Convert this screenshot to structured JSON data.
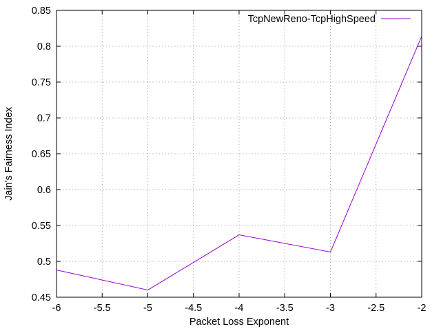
{
  "chart_data": {
    "type": "line",
    "title": "",
    "xlabel": "Packet Loss Exponent",
    "ylabel": "Jain's Fairness Index",
    "xlim": [
      -6,
      -2
    ],
    "ylim": [
      0.45,
      0.85
    ],
    "x_ticks": [
      -6,
      -5.5,
      -5,
      -4.5,
      -4,
      -3.5,
      -3,
      -2.5,
      -2
    ],
    "x_tick_labels": [
      "-6",
      "-5.5",
      "-5",
      "-4.5",
      "-4",
      "-3.5",
      "-3",
      "-2.5",
      "-2"
    ],
    "y_ticks": [
      0.45,
      0.5,
      0.55,
      0.6,
      0.65,
      0.7,
      0.75,
      0.8,
      0.85
    ],
    "y_tick_labels": [
      "0.45",
      "0.5",
      "0.55",
      "0.6",
      "0.65",
      "0.7",
      "0.75",
      "0.8",
      "0.85"
    ],
    "grid": true,
    "legend_position": "top-right",
    "series": [
      {
        "name": "TcpNewReno-TcpHighSpeed",
        "color": "#9400d3",
        "x": [
          -6,
          -5,
          -4,
          -3,
          -2
        ],
        "y": [
          0.488,
          0.46,
          0.537,
          0.513,
          0.814
        ]
      }
    ]
  }
}
